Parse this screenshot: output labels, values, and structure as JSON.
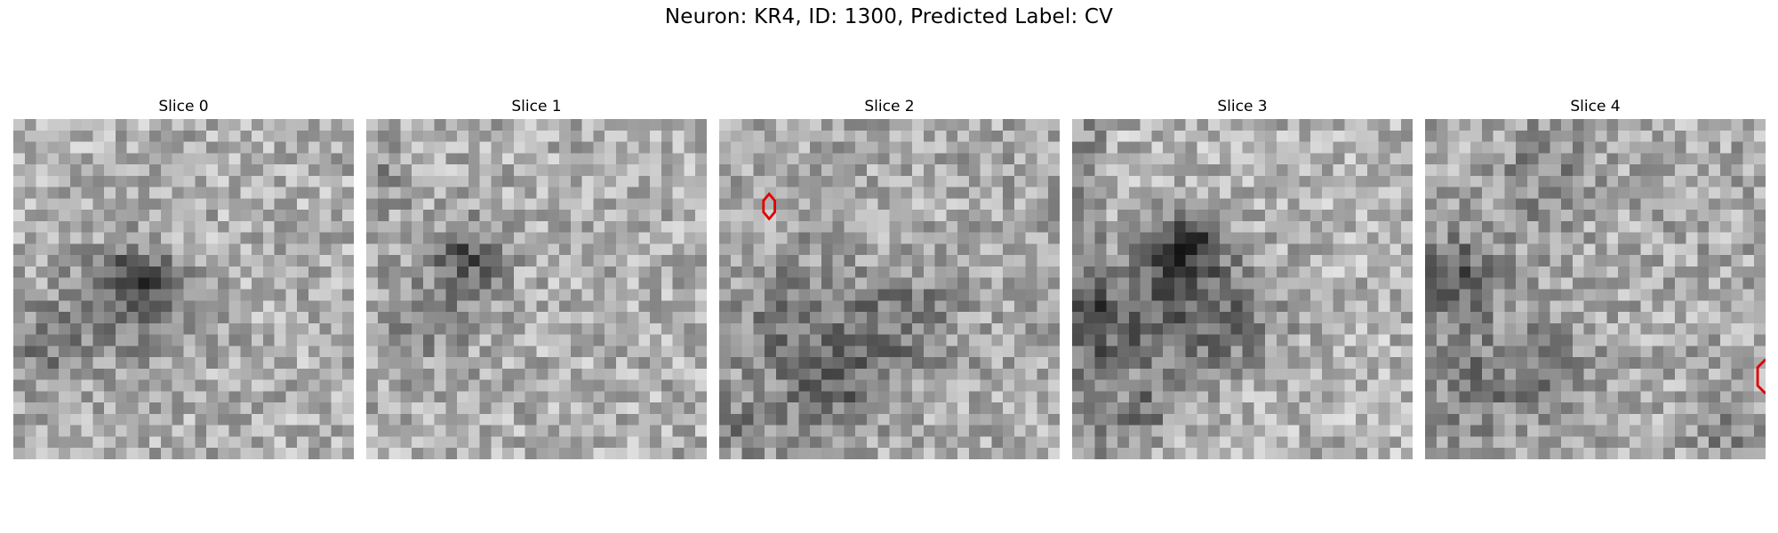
{
  "figure": {
    "title": "Neuron: KR4, ID: 1300, Predicted Label: CV",
    "slices": [
      {
        "label": "Slice 0"
      },
      {
        "label": "Slice 1"
      },
      {
        "label": "Slice 2"
      },
      {
        "label": "Slice 3"
      },
      {
        "label": "Slice 4"
      }
    ],
    "overlay_color": "#e00000",
    "colormap": "grayscale"
  }
}
